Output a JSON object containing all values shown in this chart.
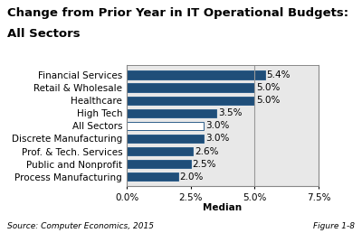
{
  "title_line1": "Change from Prior Year in IT Operational Budgets:",
  "title_line2": "All Sectors",
  "categories": [
    "Financial Services",
    "Retail & Wholesale",
    "Healthcare",
    "High Tech",
    "All Sectors",
    "Discrete Manufacturing",
    "Prof. & Tech. Services",
    "Public and Nonprofit",
    "Process Manufacturing"
  ],
  "values": [
    5.4,
    5.0,
    5.0,
    3.5,
    3.0,
    3.0,
    2.6,
    2.5,
    2.0
  ],
  "bar_colors": [
    "#1F4E79",
    "#1F4E79",
    "#1F4E79",
    "#1F4E79",
    "#FFFFFF",
    "#1F4E79",
    "#1F4E79",
    "#1F4E79",
    "#1F4E79"
  ],
  "bar_edgecolor": "#2E5F8A",
  "xlim": [
    0,
    7.5
  ],
  "xticks": [
    0.0,
    2.5,
    5.0,
    7.5
  ],
  "xlabel": "Median",
  "source_text": "Source: Computer Economics, 2015",
  "figure_text": "Figure 1-8",
  "figure_bg": "#FFFFFF",
  "plot_bg_color": "#E8E8E8",
  "title_fontsize": 9.5,
  "label_fontsize": 7.5,
  "tick_fontsize": 7.5,
  "value_fontsize": 7.5,
  "median_line_x": 5.0
}
